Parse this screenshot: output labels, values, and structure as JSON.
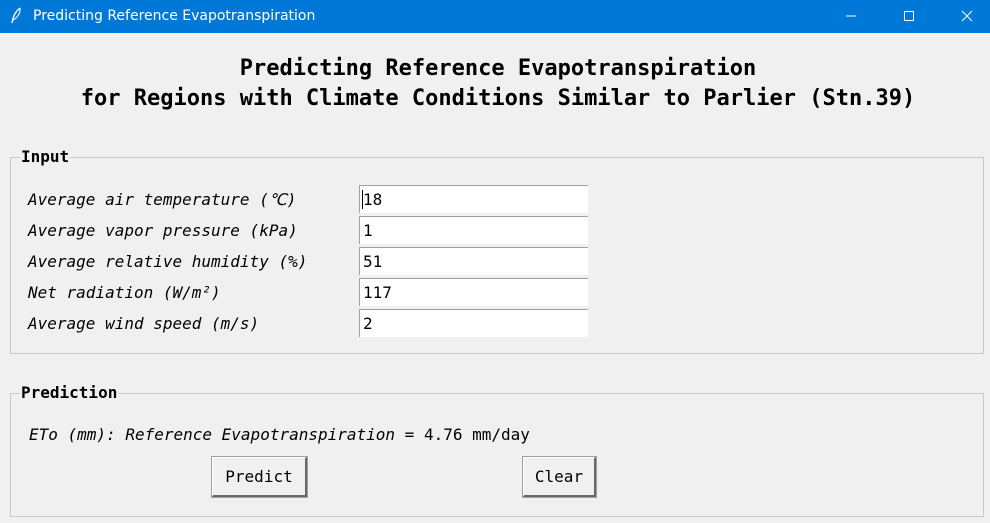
{
  "window": {
    "title": "Predicting Reference Evapotranspiration",
    "icon": "feather-icon"
  },
  "heading": {
    "line1": "Predicting Reference Evapotranspiration",
    "line2": "for Regions with Climate Conditions Similar to Parlier (Stn.39)"
  },
  "input_group": {
    "legend": "Input",
    "fields": [
      {
        "label": "Average air temperature (℃)",
        "value": "18"
      },
      {
        "label": "Average vapor pressure (kPa)",
        "value": "1"
      },
      {
        "label": "Average relative humidity (%)",
        "value": "51"
      },
      {
        "label": "Net radiation (W/m²)",
        "value": "117"
      },
      {
        "label": "Average wind speed (m/s)",
        "value": "2"
      }
    ]
  },
  "prediction_group": {
    "legend": "Prediction",
    "result_label": "ETo (mm): Reference Evapotranspiration =",
    "result_value": "4.76 mm/day",
    "predict_button": "Predict",
    "clear_button": "Clear"
  }
}
